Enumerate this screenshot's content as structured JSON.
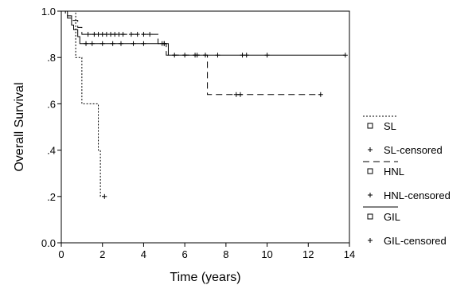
{
  "chart_data": {
    "type": "line",
    "xlabel": "Time (years)",
    "ylabel": "Overall Survival",
    "xlim": [
      0,
      14
    ],
    "ylim": [
      0,
      1
    ],
    "x_ticks": [
      "0",
      "2",
      "4",
      "6",
      "8",
      "10",
      "12",
      "14"
    ],
    "y_ticks": [
      "0.0",
      ".2",
      ".4",
      ".6",
      ".8",
      "1.0"
    ],
    "grid": false,
    "legend_position": "right",
    "series": [
      {
        "name": "SL",
        "censored_name": "SL-censored",
        "line_style": "dotted",
        "steps": [
          [
            0,
            1.0
          ],
          [
            0.7,
            0.8
          ],
          [
            1.0,
            0.6
          ],
          [
            1.8,
            0.4
          ],
          [
            1.9,
            0.2
          ]
        ],
        "end_x": 2.1,
        "censored": [
          [
            2.1,
            0.2
          ]
        ]
      },
      {
        "name": "HNL",
        "censored_name": "HNL-censored",
        "line_style": "dashed",
        "steps": [
          [
            0,
            1.0
          ],
          [
            0.2,
            0.98
          ],
          [
            0.5,
            0.96
          ],
          [
            0.8,
            0.93
          ],
          [
            1.0,
            0.9
          ],
          [
            4.7,
            0.86
          ],
          [
            5.1,
            0.81
          ],
          [
            7.1,
            0.64
          ]
        ],
        "end_x": 12.6,
        "censored": [
          [
            1.3,
            0.9
          ],
          [
            1.6,
            0.9
          ],
          [
            1.8,
            0.9
          ],
          [
            2.0,
            0.9
          ],
          [
            2.2,
            0.9
          ],
          [
            2.4,
            0.9
          ],
          [
            2.6,
            0.9
          ],
          [
            2.8,
            0.9
          ],
          [
            3.0,
            0.9
          ],
          [
            3.4,
            0.9
          ],
          [
            3.7,
            0.9
          ],
          [
            4.0,
            0.9
          ],
          [
            4.3,
            0.9
          ],
          [
            4.9,
            0.86
          ],
          [
            5.0,
            0.86
          ],
          [
            6.6,
            0.81
          ],
          [
            8.5,
            0.64
          ],
          [
            8.7,
            0.64
          ],
          [
            12.6,
            0.64
          ]
        ]
      },
      {
        "name": "GIL",
        "censored_name": "GIL-censored",
        "line_style": "solid",
        "steps": [
          [
            0,
            1.0
          ],
          [
            0.3,
            0.97
          ],
          [
            0.5,
            0.94
          ],
          [
            0.6,
            0.92
          ],
          [
            0.8,
            0.89
          ],
          [
            0.9,
            0.86
          ],
          [
            5.2,
            0.81
          ]
        ],
        "end_x": 13.8,
        "censored": [
          [
            1.2,
            0.86
          ],
          [
            1.5,
            0.86
          ],
          [
            2.0,
            0.86
          ],
          [
            2.5,
            0.86
          ],
          [
            2.9,
            0.86
          ],
          [
            3.5,
            0.86
          ],
          [
            4.0,
            0.86
          ],
          [
            5.0,
            0.86
          ],
          [
            5.5,
            0.81
          ],
          [
            6.0,
            0.81
          ],
          [
            6.5,
            0.81
          ],
          [
            7.0,
            0.81
          ],
          [
            7.6,
            0.81
          ],
          [
            8.8,
            0.81
          ],
          [
            9.0,
            0.81
          ],
          [
            10.0,
            0.81
          ],
          [
            13.8,
            0.81
          ]
        ]
      }
    ]
  },
  "legend": {
    "censored_suffix": "censored",
    "items": [
      {
        "series": "SL",
        "label": "SL",
        "censored_label": "SL-censored"
      },
      {
        "series": "HNL",
        "label": "HNL",
        "censored_label": "HNL-censored"
      },
      {
        "series": "GIL",
        "label": "GIL",
        "censored_label": "GIL-censored"
      }
    ]
  }
}
